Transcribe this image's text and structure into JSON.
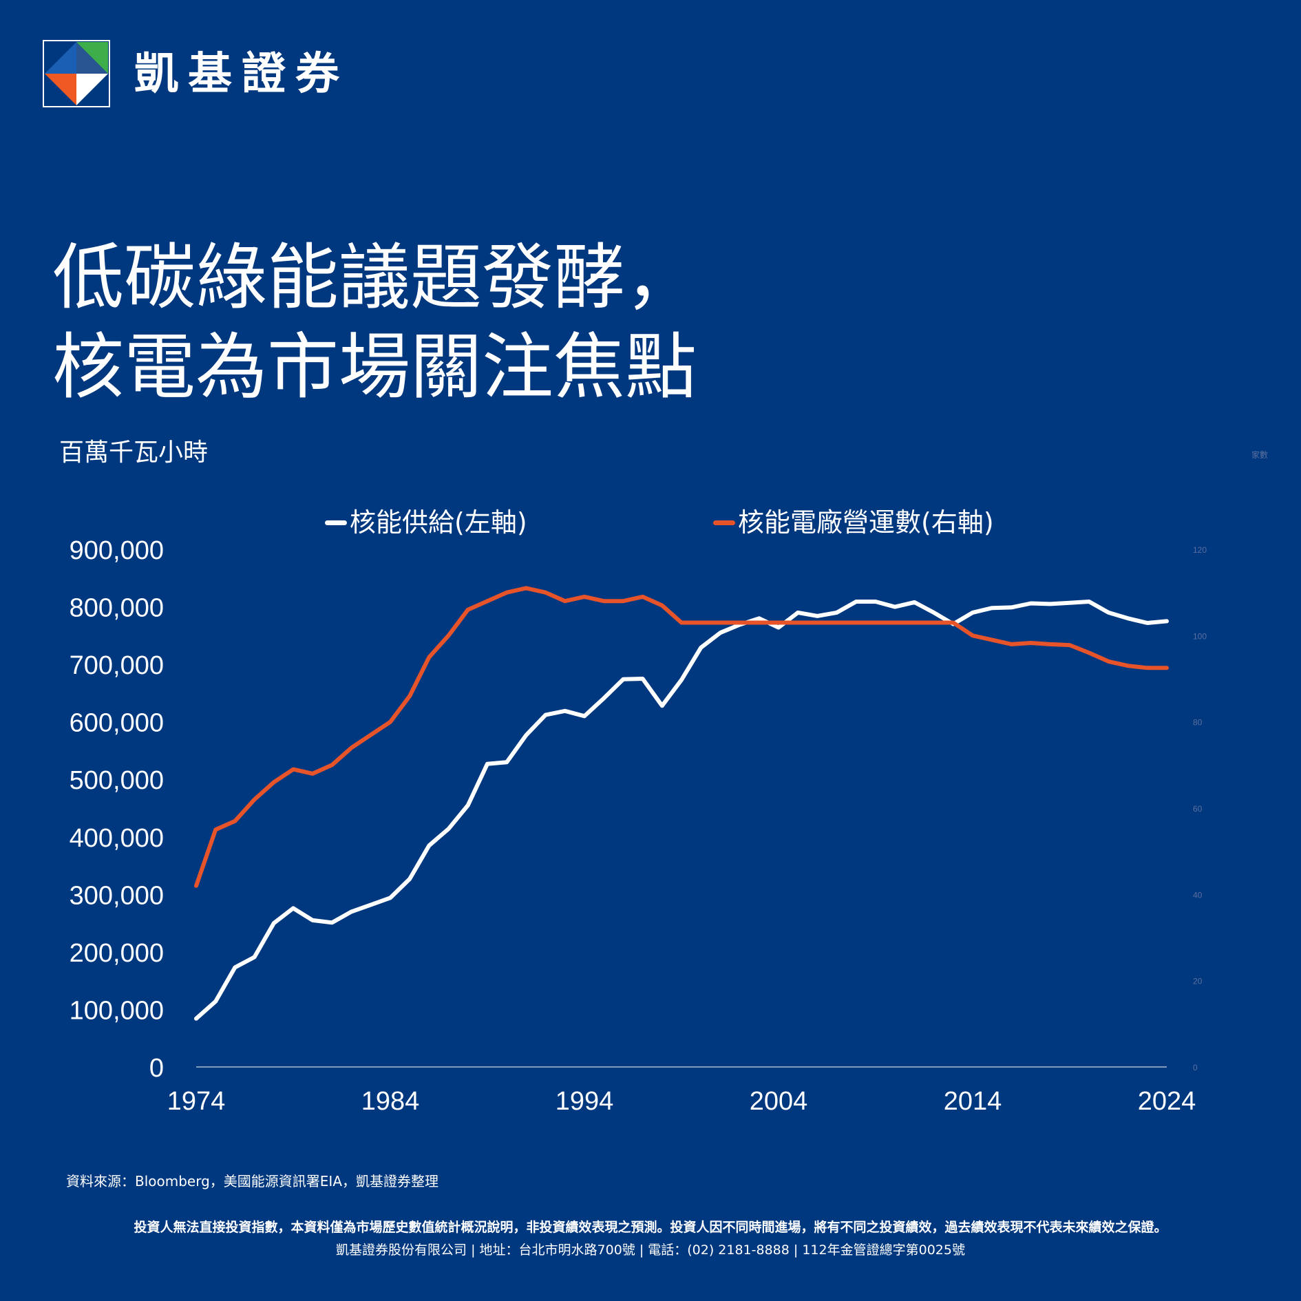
{
  "brand": {
    "name": "凱基證券"
  },
  "headline": {
    "line1": "低碳綠能議題發酵，",
    "line2": "核電為市場關注焦點"
  },
  "colors": {
    "background": "#00387F",
    "supply": "#FFFFFF",
    "plants": "#E8542A",
    "logo_blue": "#1A5FB4",
    "logo_green": "#3DAE49",
    "logo_orange": "#F05A22"
  },
  "chart_data": {
    "type": "line",
    "x": [
      1974,
      1975,
      1976,
      1977,
      1978,
      1979,
      1980,
      1981,
      1982,
      1983,
      1984,
      1985,
      1986,
      1987,
      1988,
      1989,
      1990,
      1991,
      1992,
      1993,
      1994,
      1995,
      1996,
      1997,
      1998,
      1999,
      2000,
      2001,
      2002,
      2003,
      2004,
      2005,
      2006,
      2007,
      2008,
      2009,
      2010,
      2011,
      2012,
      2013,
      2014,
      2015,
      2016,
      2017,
      2018,
      2019,
      2020,
      2021,
      2022,
      2023,
      2024
    ],
    "series": [
      {
        "name": "核能供給(左軸)",
        "axis": "left",
        "color": "#FFFFFF",
        "values": [
          84000,
          114000,
          173000,
          191000,
          250000,
          276000,
          255000,
          251000,
          270000,
          282000,
          294000,
          327000,
          385000,
          414000,
          455000,
          527000,
          530000,
          577000,
          612000,
          619000,
          610000,
          641000,
          674000,
          675000,
          628000,
          673000,
          729000,
          755000,
          769000,
          780000,
          764000,
          790000,
          784000,
          790000,
          809000,
          809000,
          800000,
          808000,
          790000,
          770000,
          790000,
          798000,
          799000,
          806000,
          805000,
          807000,
          809000,
          790000,
          780000,
          772000,
          775000
        ]
      },
      {
        "name": "核能電廠營運數(右軸)",
        "axis": "right",
        "color": "#E8542A",
        "values": [
          42,
          55,
          57,
          62,
          66,
          69,
          68,
          70,
          74,
          77,
          80,
          86,
          95,
          100,
          106,
          108,
          110,
          111,
          110,
          108,
          109,
          108,
          108,
          109,
          107,
          103,
          103,
          103,
          103,
          103,
          103,
          103,
          103,
          103,
          103,
          103,
          103,
          103,
          103,
          103,
          100,
          99,
          98,
          98.3,
          98,
          97.8,
          96,
          94,
          93,
          92.5,
          92.5
        ]
      }
    ],
    "ylabel_left": "百萬千瓦小時",
    "ylabel_right": "家數",
    "ylim_left": [
      0,
      900000
    ],
    "ylim_right": [
      0,
      120
    ],
    "yticks_left": [
      "900,000",
      "800,000",
      "700,000",
      "600,000",
      "500,000",
      "400,000",
      "300,000",
      "200,000",
      "100,000",
      "0"
    ],
    "yticks_right": [
      "120",
      "100",
      "80",
      "60",
      "40",
      "20",
      "0"
    ],
    "xticks": [
      "1974",
      "1984",
      "1994",
      "2004",
      "2014",
      "2024"
    ],
    "grid": false,
    "legend_position": "top"
  },
  "footer": {
    "source": "資料來源：Bloomberg，美國能源資訊署EIA，凱基證券整理",
    "disclaimer": "投資人無法直接投資指數，本資料僅為市場歷史數值統計概況說明，非投資績效表現之預測。投資人因不同時間進場，將有不同之投資績效，過去績效表現不代表未來績效之保證。",
    "company_info": "凱基證券股份有限公司 | 地址：台北市明水路700號 | 電話：(02) 2181-8888 | 112年金管證總字第0025號"
  }
}
